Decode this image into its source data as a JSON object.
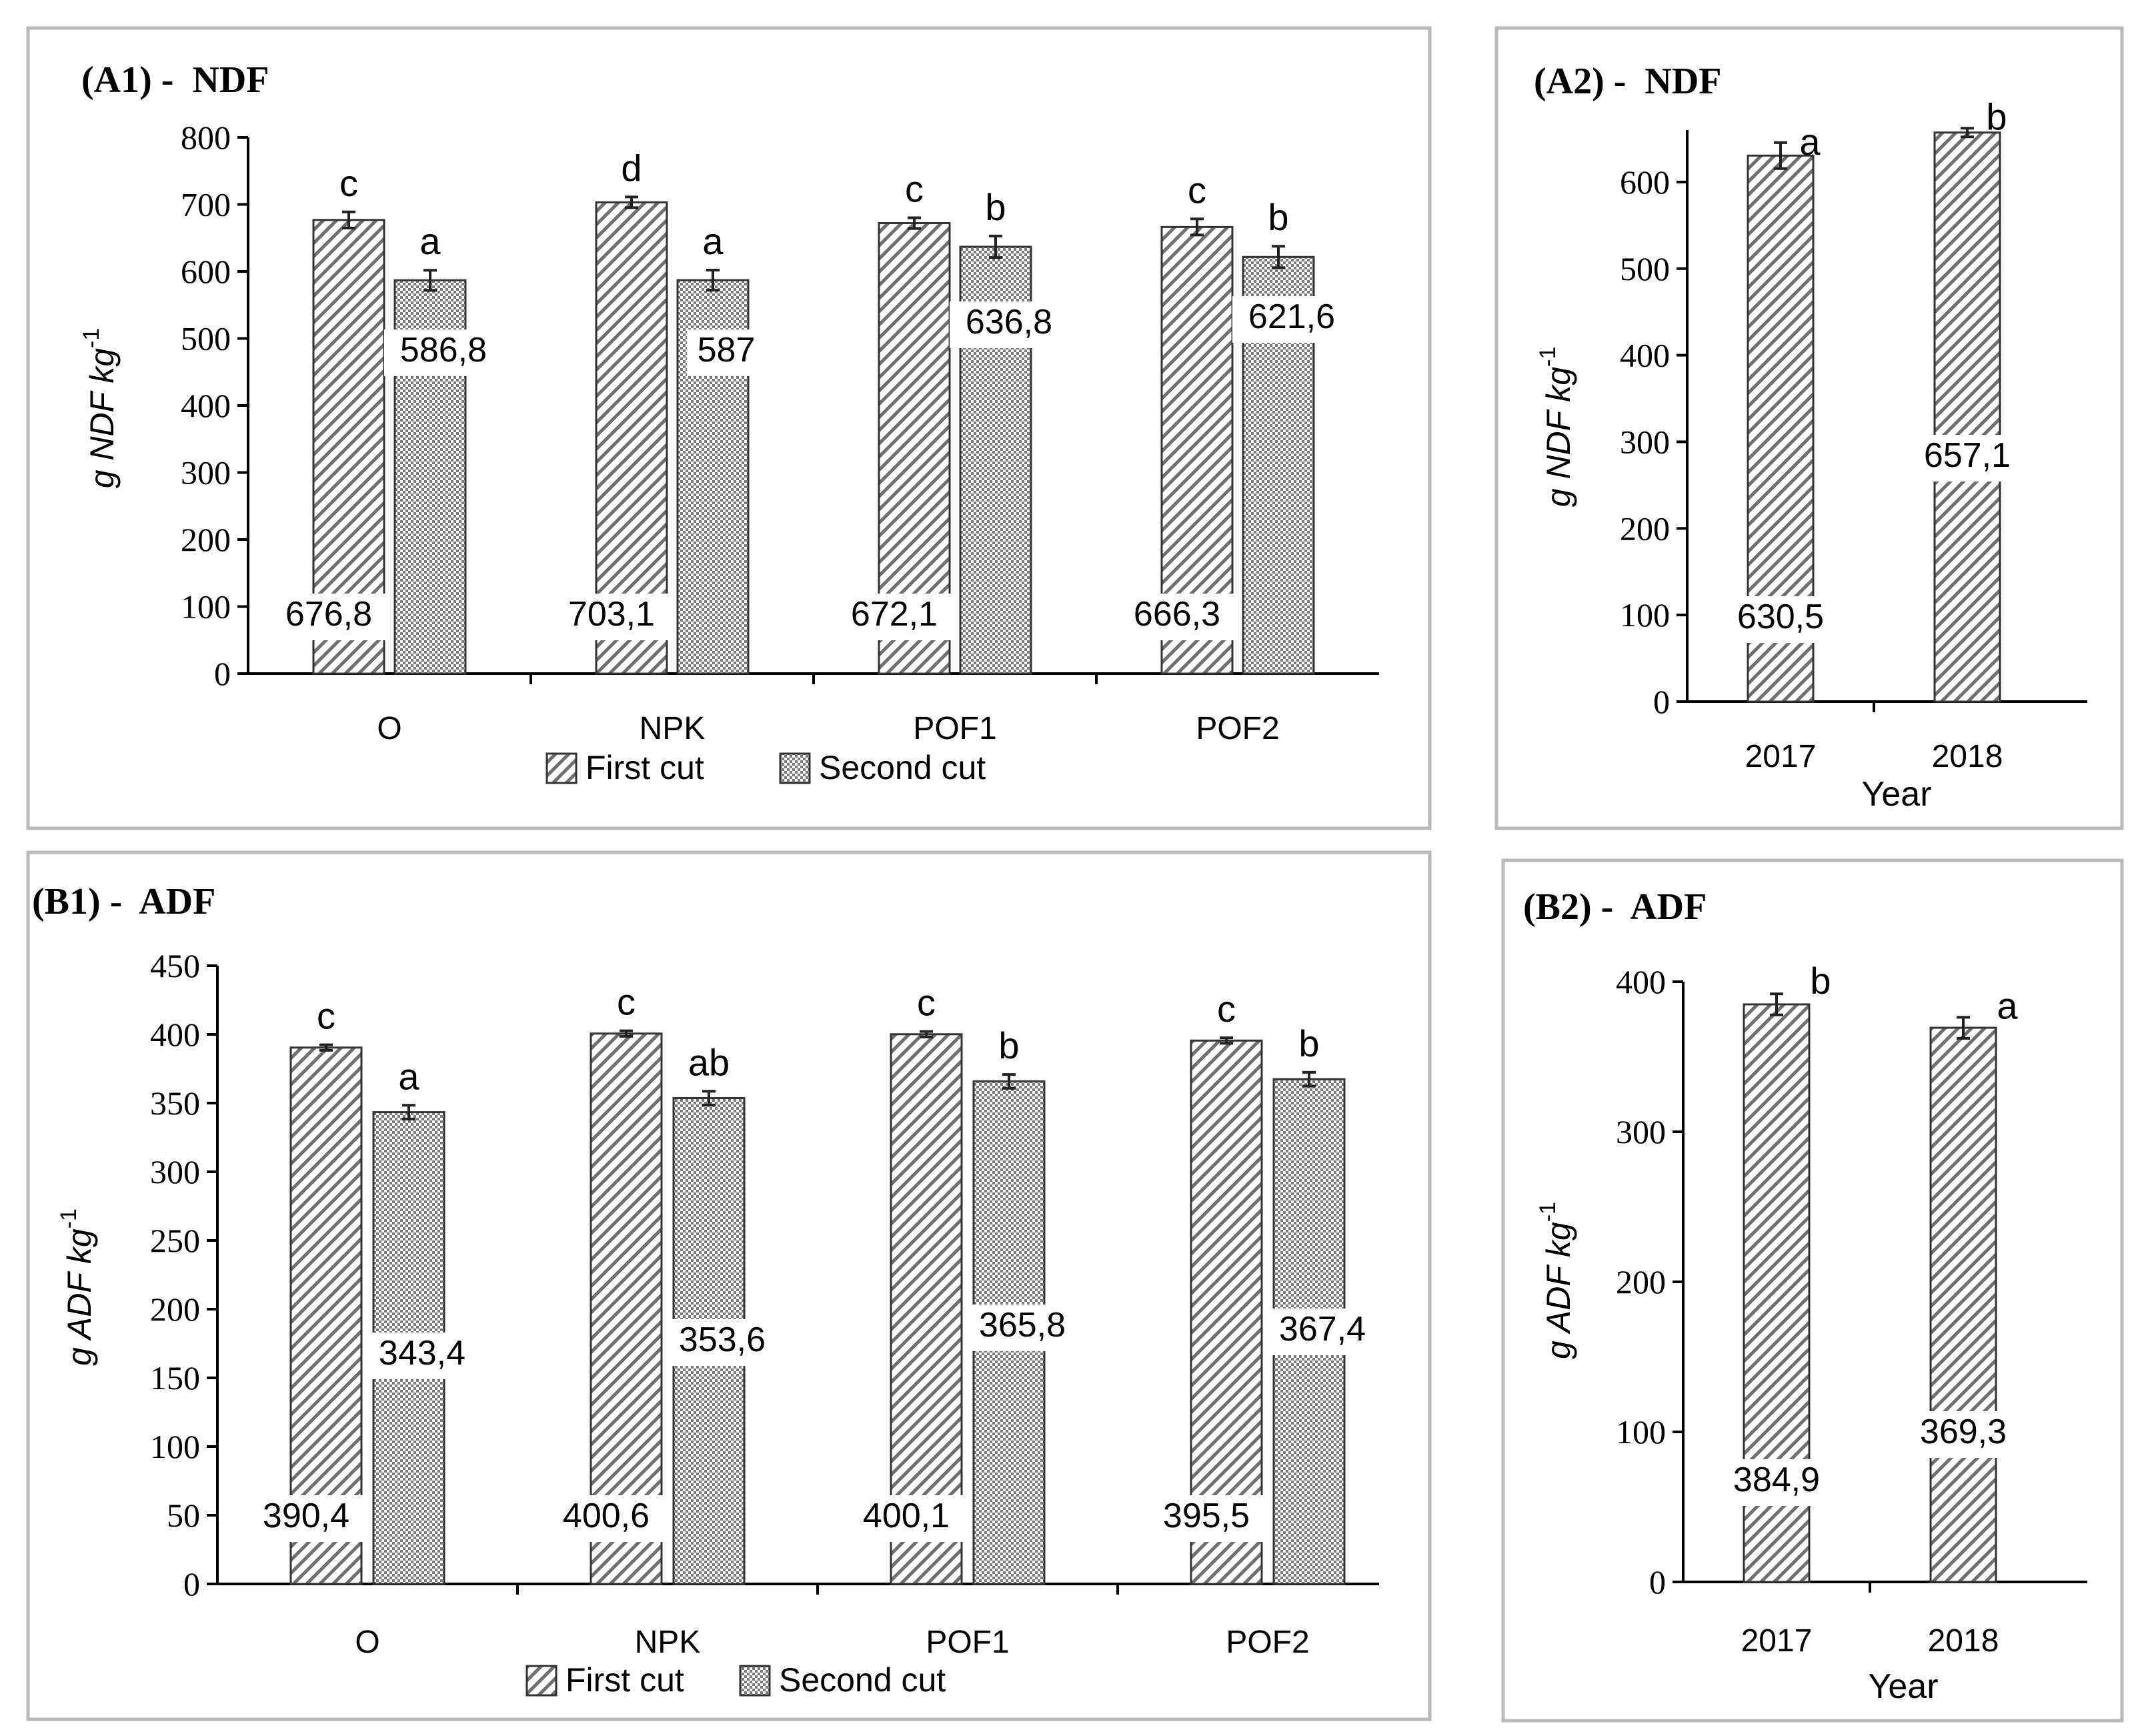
{
  "chart_data": [
    {
      "id": "A1",
      "type": "bar",
      "title": "(A1) -  NDF",
      "ylabel": "g NDF kg-1",
      "ylabel_main": "g NDF kg",
      "ylabel_sup": "-1",
      "ylim": [
        0,
        800
      ],
      "yticks": [
        0,
        100,
        200,
        300,
        400,
        500,
        600,
        700,
        800
      ],
      "categories": [
        "O",
        "NPK",
        "POF1",
        "POF2"
      ],
      "series": [
        {
          "name": "First cut",
          "pattern": "diag",
          "values": [
            676.8,
            703.1,
            672.1,
            666.3
          ],
          "labels": [
            "676,8",
            "703,1",
            "672,1",
            "666,3"
          ],
          "errors": [
            12,
            8,
            8,
            12
          ],
          "letters": [
            "c",
            "d",
            "c",
            "c"
          ]
        },
        {
          "name": "Second cut",
          "pattern": "dots",
          "values": [
            586.8,
            587,
            636.8,
            621.6
          ],
          "labels": [
            "586,8",
            "587",
            "636,8",
            "621,6"
          ],
          "errors": [
            15,
            15,
            16,
            16
          ],
          "letters": [
            "a",
            "a",
            "b",
            "b"
          ]
        }
      ],
      "legend": [
        "First cut",
        "Second cut"
      ],
      "legend_position": "bottom"
    },
    {
      "id": "A2",
      "type": "bar",
      "title": "(A2) -  NDF",
      "ylabel": "g NDF kg-1",
      "ylabel_main": "g NDF kg",
      "ylabel_sup": "-1",
      "xlabel": "Year",
      "ylim": [
        0,
        660
      ],
      "yticks": [
        0,
        100,
        200,
        300,
        400,
        500,
        600
      ],
      "categories": [
        "2017",
        "2018"
      ],
      "series": [
        {
          "name": "",
          "pattern": "diag",
          "values": [
            630.5,
            657.1
          ],
          "labels": [
            "630,5",
            "657,1"
          ],
          "errors": [
            15,
            5
          ],
          "letters": [
            "a",
            "b"
          ]
        }
      ]
    },
    {
      "id": "B1",
      "type": "bar",
      "title": "(B1) -  ADF",
      "ylabel": "g ADF kg-1",
      "ylabel_main": "g ADF kg",
      "ylabel_sup": "-1",
      "ylim": [
        0,
        450
      ],
      "yticks": [
        0,
        50,
        100,
        150,
        200,
        250,
        300,
        350,
        400,
        450
      ],
      "categories": [
        "O",
        "NPK",
        "POF1",
        "POF2"
      ],
      "series": [
        {
          "name": "First cut",
          "pattern": "diag",
          "values": [
            390.4,
            400.6,
            400.1,
            395.5
          ],
          "labels": [
            "390,4",
            "400,6",
            "400,1",
            "395,5"
          ],
          "errors": [
            2,
            2,
            2,
            2
          ],
          "letters": [
            "c",
            "c",
            "c",
            "c"
          ]
        },
        {
          "name": "Second cut",
          "pattern": "dots",
          "values": [
            343.4,
            353.6,
            365.8,
            367.4
          ],
          "labels": [
            "343,4",
            "353,6",
            "365,8",
            "367,4"
          ],
          "errors": [
            5,
            5,
            5,
            5
          ],
          "letters": [
            "a",
            "ab",
            "b",
            "b"
          ]
        }
      ],
      "legend": [
        "First cut",
        "Second cut"
      ],
      "legend_position": "bottom"
    },
    {
      "id": "B2",
      "type": "bar",
      "title": "(B2) -  ADF",
      "ylabel": "g ADF kg-1",
      "ylabel_main": "g ADF kg",
      "ylabel_sup": "-1",
      "xlabel": "Year",
      "ylim": [
        0,
        400
      ],
      "yticks": [
        0,
        100,
        200,
        300,
        400
      ],
      "categories": [
        "2017",
        "2018"
      ],
      "series": [
        {
          "name": "",
          "pattern": "diag",
          "values": [
            384.9,
            369.3
          ],
          "labels": [
            "384,9",
            "369,3"
          ],
          "errors": [
            7,
            7
          ],
          "letters": [
            "b",
            "a"
          ]
        }
      ]
    }
  ]
}
